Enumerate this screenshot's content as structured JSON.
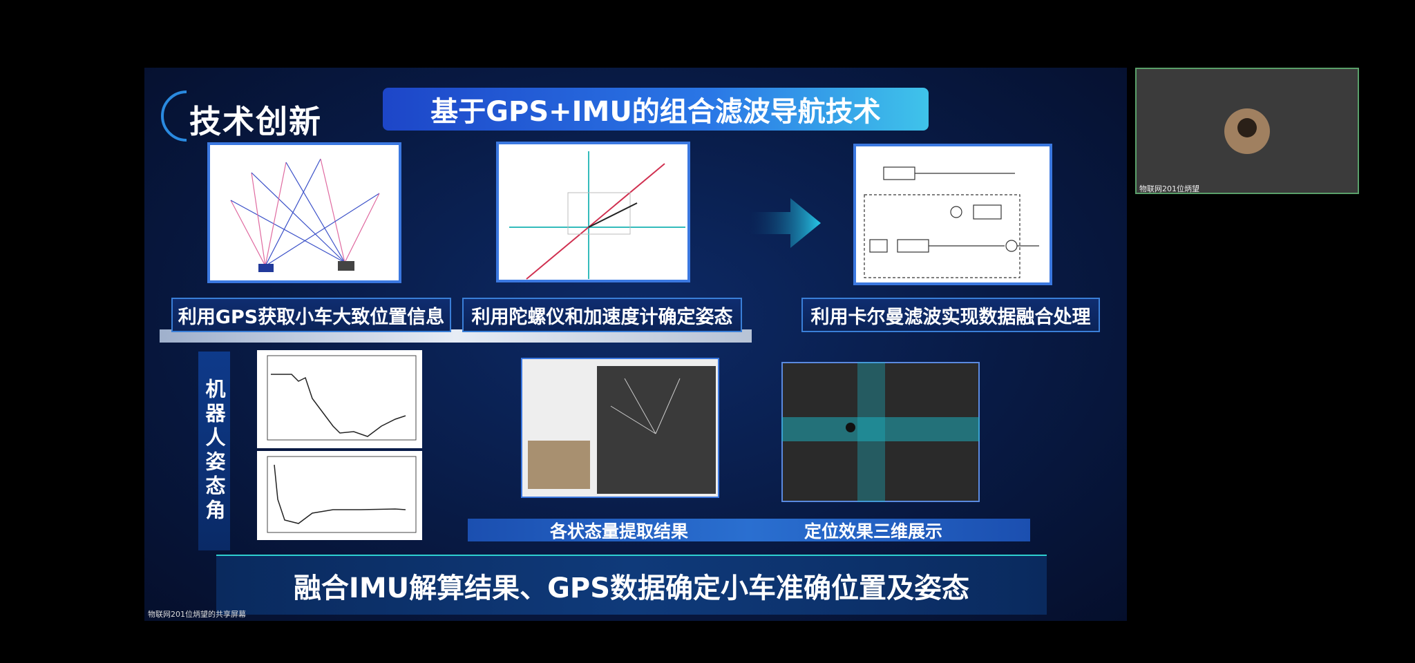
{
  "slide": {
    "section_title": "技术创新",
    "banner_title": "基于GPS+IMU的组合滤波导航技术",
    "captions": [
      "利用GPS获取小车大致位置信息",
      "利用陀螺仪和加速度计确定姿态",
      "利用卡尔曼滤波实现数据融合处理"
    ],
    "vertical_label": "机器人姿态角",
    "result_captions": [
      "各状态量提取结果",
      "定位效果三维展示"
    ],
    "conclusion": "融合IMU解算结果、GPS数据确定小车准确位置及姿态"
  },
  "share_label": "物联网201位炳望的共享屏幕",
  "participant": {
    "name": "物联网201位炳望"
  }
}
